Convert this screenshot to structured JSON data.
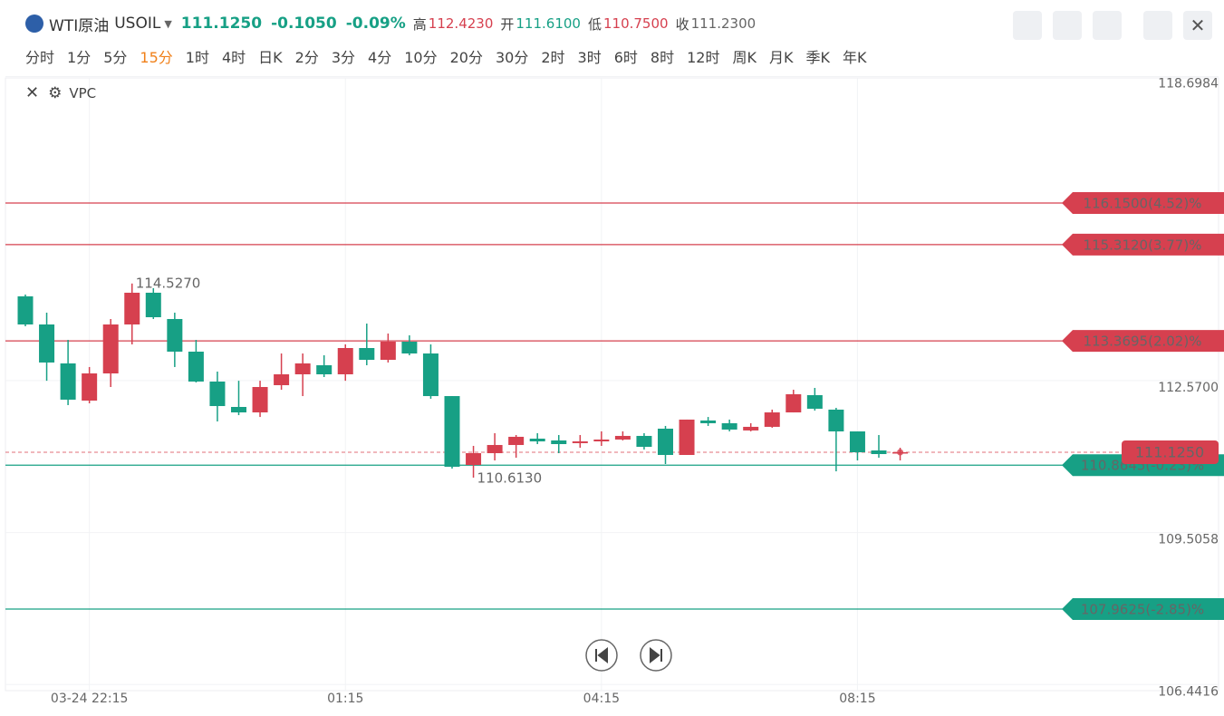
{
  "header": {
    "name": "WTI原油",
    "symbol": "USOIL",
    "price": "111.1250",
    "change": "-0.1050",
    "change_pct": "-0.09%",
    "high_label": "高",
    "high": "112.4230",
    "open_label": "开",
    "open": "111.6100",
    "low_label": "低",
    "low": "110.7500",
    "close_label": "收",
    "close": "111.2300"
  },
  "timeframes": [
    "分时",
    "1分",
    "5分",
    "15分",
    "1时",
    "4时",
    "日K",
    "2分",
    "3分",
    "4分",
    "10分",
    "20分",
    "30分",
    "2时",
    "3时",
    "6时",
    "8时",
    "12时",
    "周K",
    "月K",
    "季K",
    "年K"
  ],
  "indicator": "VPC",
  "chart_data": {
    "type": "candlestick",
    "categories": [
      null,
      null,
      null,
      "03-24 22:15",
      null,
      null,
      null,
      null,
      null,
      null,
      null,
      null,
      null,
      null,
      null,
      "01:15",
      null,
      null,
      null,
      null,
      null,
      null,
      null,
      null,
      null,
      null,
      null,
      "04:15",
      null,
      null,
      null,
      null,
      null,
      null,
      null,
      null,
      null,
      null,
      null,
      "08:15",
      null,
      null
    ],
    "open": [
      114.268,
      113.701,
      112.916,
      112.166,
      112.714,
      113.701,
      114.341,
      113.811,
      113.153,
      112.55,
      112.038,
      111.928,
      112.477,
      112.696,
      112.879,
      112.696,
      113.226,
      112.988,
      113.354,
      113.116,
      112.257,
      110.868,
      111.106,
      111.271,
      111.399,
      111.363,
      111.308,
      111.344,
      111.381,
      111.454,
      111.6,
      111.07,
      111.765,
      111.71,
      111.564,
      111.637,
      111.928,
      112.276,
      111.984,
      111.545,
      111.161,
      111.11
    ],
    "high": [
      114.304,
      113.939,
      113.39,
      112.843,
      113.811,
      114.527,
      114.432,
      113.939,
      113.39,
      112.751,
      112.566,
      112.566,
      113.116,
      113.116,
      113.08,
      113.299,
      113.719,
      113.518,
      113.482,
      113.299,
      112.257,
      111.253,
      111.509,
      111.472,
      111.509,
      111.472,
      111.472,
      111.546,
      111.546,
      111.509,
      111.655,
      111.783,
      111.836,
      111.783,
      111.71,
      111.984,
      112.385,
      112.422,
      112.02,
      111.545,
      111.472,
      111.216
    ],
    "low": [
      113.665,
      112.566,
      112.075,
      112.111,
      112.44,
      113.299,
      113.811,
      112.843,
      112.532,
      111.746,
      111.873,
      111.836,
      112.385,
      112.257,
      112.641,
      112.566,
      112.879,
      112.934,
      113.08,
      112.203,
      110.795,
      110.613,
      110.96,
      111.015,
      111.289,
      111.106,
      111.216,
      111.253,
      111.363,
      111.18,
      110.887,
      111.07,
      111.655,
      111.546,
      111.546,
      111.619,
      111.928,
      111.965,
      110.74,
      110.96,
      111.015,
      110.96
    ],
    "close": [
      113.701,
      112.934,
      112.185,
      112.714,
      113.701,
      114.341,
      113.847,
      113.153,
      112.55,
      112.056,
      111.928,
      112.44,
      112.696,
      112.916,
      112.696,
      113.226,
      112.988,
      113.354,
      113.116,
      112.257,
      110.832,
      111.106,
      111.271,
      111.436,
      111.344,
      111.289,
      111.344,
      111.381,
      111.454,
      111.234,
      111.07,
      111.783,
      111.71,
      111.582,
      111.637,
      111.928,
      112.294,
      112.002,
      111.545,
      111.124,
      111.088,
      111.125
    ],
    "up_color": "#d6404f",
    "down_color": "#17a085",
    "ylim": [
      106.355,
      118.635
    ],
    "yticks": [
      118.6984,
      {
        "value": 112.57,
        "label": "112.5700"
      },
      109.5058,
      106.4416
    ],
    "max_label": "114.5270",
    "min_label": "110.6130",
    "last_price": 111.125,
    "levels": [
      {
        "value": 116.15,
        "label": "116.1500(4.52)%",
        "color": "#d6404f"
      },
      {
        "value": 115.312,
        "label": "115.3120(3.77)%",
        "color": "#d6404f"
      },
      {
        "value": 113.3695,
        "label": "113.3695(2.02)%",
        "color": "#d6404f"
      },
      {
        "value": 110.8645,
        "label": "110.8645(-0.23)%",
        "color": "#17a085"
      },
      {
        "value": 107.9625,
        "label": "107.9625(-2.85)%",
        "color": "#17a085"
      }
    ],
    "grid": true
  }
}
